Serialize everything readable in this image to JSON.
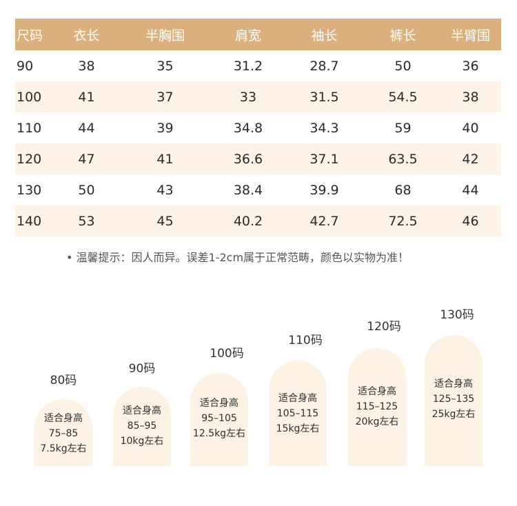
{
  "table": {
    "headers": [
      "尺码",
      "衣长",
      "半胸围",
      "肩宽",
      "袖长",
      "裤长",
      "半臂围"
    ],
    "rows": [
      [
        "90",
        "38",
        "35",
        "31.2",
        "28.7",
        "50",
        "36"
      ],
      [
        "100",
        "41",
        "37",
        "33",
        "31.5",
        "54.5",
        "38"
      ],
      [
        "110",
        "44",
        "39",
        "34.8",
        "34.3",
        "59",
        "40"
      ],
      [
        "120",
        "47",
        "41",
        "36.6",
        "37.1",
        "63.5",
        "42"
      ],
      [
        "130",
        "50",
        "43",
        "38.4",
        "39.9",
        "68",
        "44"
      ],
      [
        "140",
        "53",
        "45",
        "40.2",
        "42.7",
        "72.5",
        "46"
      ]
    ]
  },
  "note": "• 温馨提示：因人而异。误差1-2cm属于正常范畴，颜色以实物为准！",
  "sizes": [
    {
      "label": "80码",
      "fit": "适合身高",
      "height": "75–85",
      "weight": "7.5kg左右"
    },
    {
      "label": "90码",
      "fit": "适合身高",
      "height": "85–95",
      "weight": "10kg左右"
    },
    {
      "label": "100码",
      "fit": "适合身高",
      "height": "95–105",
      "weight": "12.5kg左右"
    },
    {
      "label": "110码",
      "fit": "适合身高",
      "height": "105–115",
      "weight": "15kg左右"
    },
    {
      "label": "120码",
      "fit": "适合身高",
      "height": "115–125",
      "weight": "20kg左右"
    },
    {
      "label": "130码",
      "fit": "适合身高",
      "height": "125–135",
      "weight": "25kg左右"
    }
  ],
  "colors": {
    "header_bg": "#dcb07d",
    "row_shade": "#fdf3e6",
    "card_bg": "#fdf2e3"
  }
}
